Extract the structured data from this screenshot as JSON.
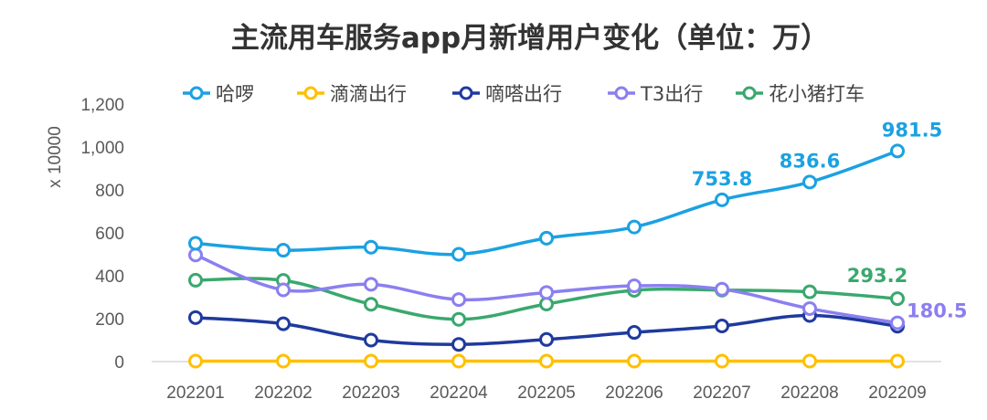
{
  "chart_data": {
    "type": "line",
    "title": "主流用车服务app月新增用户变化（单位：万）",
    "ylabel": "x 10000",
    "xlabel": "",
    "ylim": [
      0,
      1200
    ],
    "yticks": [
      0,
      200,
      400,
      600,
      800,
      1000,
      1200
    ],
    "ytick_labels": [
      "0",
      "200",
      "400",
      "600",
      "800",
      "1,000",
      "1,200"
    ],
    "grid": false,
    "legend_position": "top",
    "categories": [
      "202201",
      "202202",
      "202203",
      "202204",
      "202205",
      "202206",
      "202207",
      "202208",
      "202209"
    ],
    "series": [
      {
        "name": "哈啰",
        "color": "#1ba1e2",
        "values": [
          551,
          519,
          533,
          500,
          575,
          627,
          753.8,
          836.6,
          981.5
        ]
      },
      {
        "name": "滴滴出行",
        "color": "#ffc000",
        "values": [
          2,
          2,
          2,
          2,
          2,
          2,
          2,
          2,
          2
        ]
      },
      {
        "name": "嘀嗒出行",
        "color": "#1f3a9e",
        "values": [
          205,
          176,
          100,
          80,
          103,
          136,
          166,
          215,
          165
        ]
      },
      {
        "name": "T3出行",
        "color": "#8b7ff0",
        "values": [
          497,
          334,
          360,
          289,
          322,
          353,
          337,
          247,
          180.5
        ]
      },
      {
        "name": "花小猪打车",
        "color": "#3aa86e",
        "values": [
          379,
          378,
          267,
          197,
          268,
          332,
          333,
          325,
          293.2
        ]
      }
    ],
    "data_labels": [
      {
        "series": 0,
        "index": 6,
        "text": "753.8",
        "color": "#1ba1e2"
      },
      {
        "series": 0,
        "index": 7,
        "text": "836.6",
        "color": "#1ba1e2"
      },
      {
        "series": 0,
        "index": 8,
        "text": "981.5",
        "color": "#1ba1e2"
      },
      {
        "series": 4,
        "index": 8,
        "text": "293.2",
        "color": "#3aa86e"
      },
      {
        "series": 3,
        "index": 8,
        "text": "180.5",
        "color": "#8b7ff0"
      }
    ]
  }
}
